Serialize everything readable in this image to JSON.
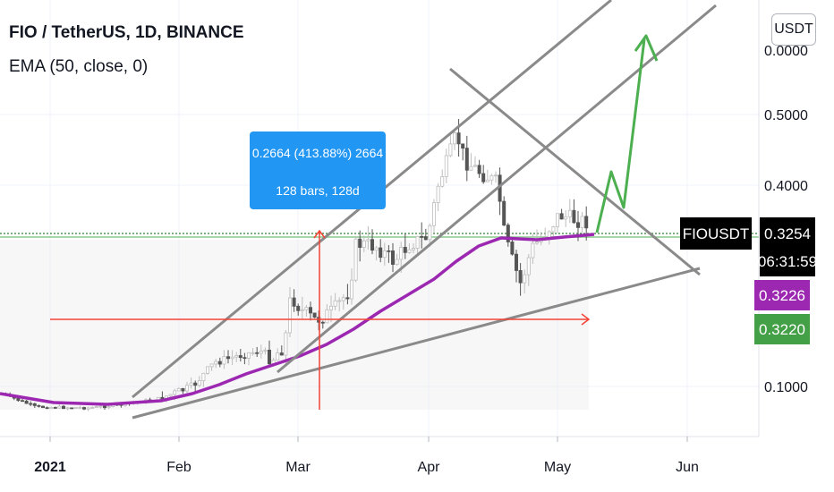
{
  "header": {
    "title": "FIO / TetherUS, 1D, BINANCE",
    "indicator": "EMA (50, close, 0)",
    "currency_button": "USDT"
  },
  "measure_tool": {
    "line1": "0.2664 (413.88%) 2664",
    "line2": "128 bars, 128d"
  },
  "price_tags": {
    "symbol": "FIOUSDT",
    "last": "0.3254",
    "countdown": "06:31:59",
    "ema": "0.3226",
    "level": "0.3220"
  },
  "colors": {
    "up": "#bdbdbd",
    "down": "#555555",
    "ema": "#9c27b0",
    "arrow": "#4caf50",
    "measure": "#2196f3",
    "level": "#f44336",
    "last_tag": "#000000",
    "level_tag": "#43a047"
  },
  "chart_data": {
    "type": "candlestick",
    "y_axis": {
      "ticks": [
        "0.1000",
        "0.4000",
        "0.5000"
      ],
      "partial_top_label": "0.0000"
    },
    "x_axis": {
      "ticks": [
        {
          "label": "2021",
          "bold": true
        },
        {
          "label": "Feb",
          "bold": false
        },
        {
          "label": "Mar",
          "bold": false
        },
        {
          "label": "Apr",
          "bold": false
        },
        {
          "label": "May",
          "bold": false
        },
        {
          "label": "Jun",
          "bold": false
        }
      ]
    },
    "series": [
      {
        "name": "EMA (50, close, 0)",
        "last_value": 0.3226
      }
    ],
    "last_price": 0.3254,
    "support_level": 0.322
  }
}
